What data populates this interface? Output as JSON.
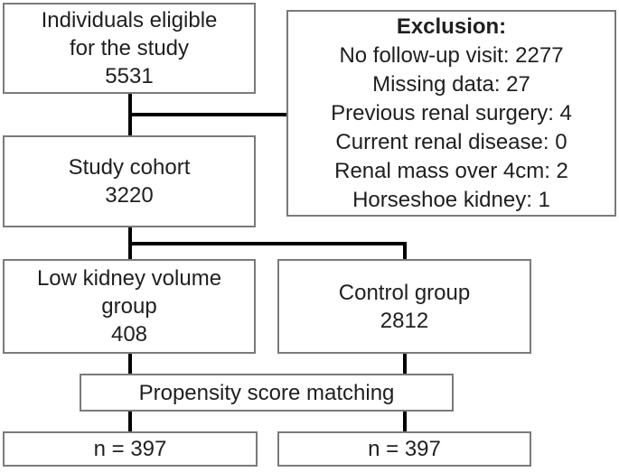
{
  "colors": {
    "background": "#ffffff",
    "box_border": "#7a7a7a",
    "text": "#1f1f1f",
    "connector": "#000000"
  },
  "flowchart": {
    "eligible_box": {
      "lines": [
        "Individuals eligible",
        "for the study",
        "5531"
      ]
    },
    "exclusion_box": {
      "title": "Exclusion:",
      "items": [
        "No follow-up visit: 2277",
        "Missing data: 27",
        "Previous renal surgery: 4",
        "Current renal disease: 0",
        "Renal mass over 4cm: 2",
        "Horseshoe kidney: 1"
      ]
    },
    "cohort_box": {
      "lines": [
        "Study cohort",
        "3220"
      ]
    },
    "low_volume_box": {
      "lines": [
        "Low kidney volume",
        "group",
        "408"
      ]
    },
    "control_box": {
      "lines": [
        "Control group",
        "2812"
      ]
    },
    "matching_box": {
      "label": "Propensity score matching"
    },
    "matched_left_box": {
      "label": "n = 397"
    },
    "matched_right_box": {
      "label": "n = 397"
    }
  }
}
